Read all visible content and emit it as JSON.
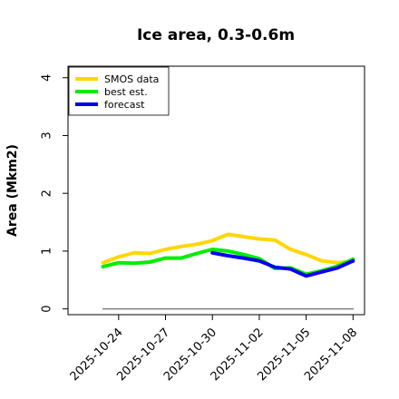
{
  "chart_data": {
    "type": "line",
    "title": "Ice area, 0.3-0.6m",
    "xlabel": "",
    "ylabel": "Area (Mkm2)",
    "ylim": [
      -0.1,
      4.2
    ],
    "y_ticks": [
      0,
      1,
      2,
      3,
      4
    ],
    "x_ticks": [
      "2025-10-24",
      "2025-10-27",
      "2025-10-30",
      "2025-11-02",
      "2025-11-05",
      "2025-11-08"
    ],
    "highlight_tick": "2025-10-30",
    "highlight_color": "#1a7f1a",
    "legend_position": "upper-left",
    "grid": false,
    "series": [
      {
        "name": "SMOS data",
        "color": "#ffd700",
        "x": [
          "2025-10-23",
          "2025-10-24",
          "2025-10-25",
          "2025-10-26",
          "2025-10-27",
          "2025-10-28",
          "2025-10-29",
          "2025-10-30",
          "2025-10-31",
          "2025-11-01",
          "2025-11-02",
          "2025-11-03",
          "2025-11-04",
          "2025-11-05",
          "2025-11-06",
          "2025-11-07",
          "2025-11-08"
        ],
        "values": [
          0.8,
          0.9,
          0.97,
          0.96,
          1.03,
          1.08,
          1.12,
          1.18,
          1.29,
          1.25,
          1.21,
          1.19,
          1.03,
          0.94,
          0.83,
          0.8,
          0.82
        ]
      },
      {
        "name": "best est.",
        "color": "#00ee00",
        "x": [
          "2025-10-23",
          "2025-10-24",
          "2025-10-25",
          "2025-10-26",
          "2025-10-27",
          "2025-10-28",
          "2025-10-29",
          "2025-10-30",
          "2025-10-31",
          "2025-11-01",
          "2025-11-02",
          "2025-11-03",
          "2025-11-04",
          "2025-11-05",
          "2025-11-06",
          "2025-11-07",
          "2025-11-08"
        ],
        "values": [
          0.73,
          0.8,
          0.79,
          0.81,
          0.88,
          0.88,
          0.96,
          1.03,
          1.0,
          0.94,
          0.87,
          0.7,
          0.71,
          0.6,
          0.66,
          0.74,
          0.86
        ]
      },
      {
        "name": "forecast",
        "color": "#0000ee",
        "x": [
          "2025-10-30",
          "2025-10-31",
          "2025-11-01",
          "2025-11-02",
          "2025-11-03",
          "2025-11-04",
          "2025-11-05",
          "2025-11-06",
          "2025-11-07",
          "2025-11-08"
        ],
        "values": [
          0.97,
          0.92,
          0.88,
          0.83,
          0.72,
          0.69,
          0.57,
          0.64,
          0.71,
          0.83
        ]
      },
      {
        "name": "",
        "color": "#808080",
        "x": [
          "2025-10-23",
          "2025-11-08"
        ],
        "values": [
          0,
          0
        ]
      }
    ]
  }
}
